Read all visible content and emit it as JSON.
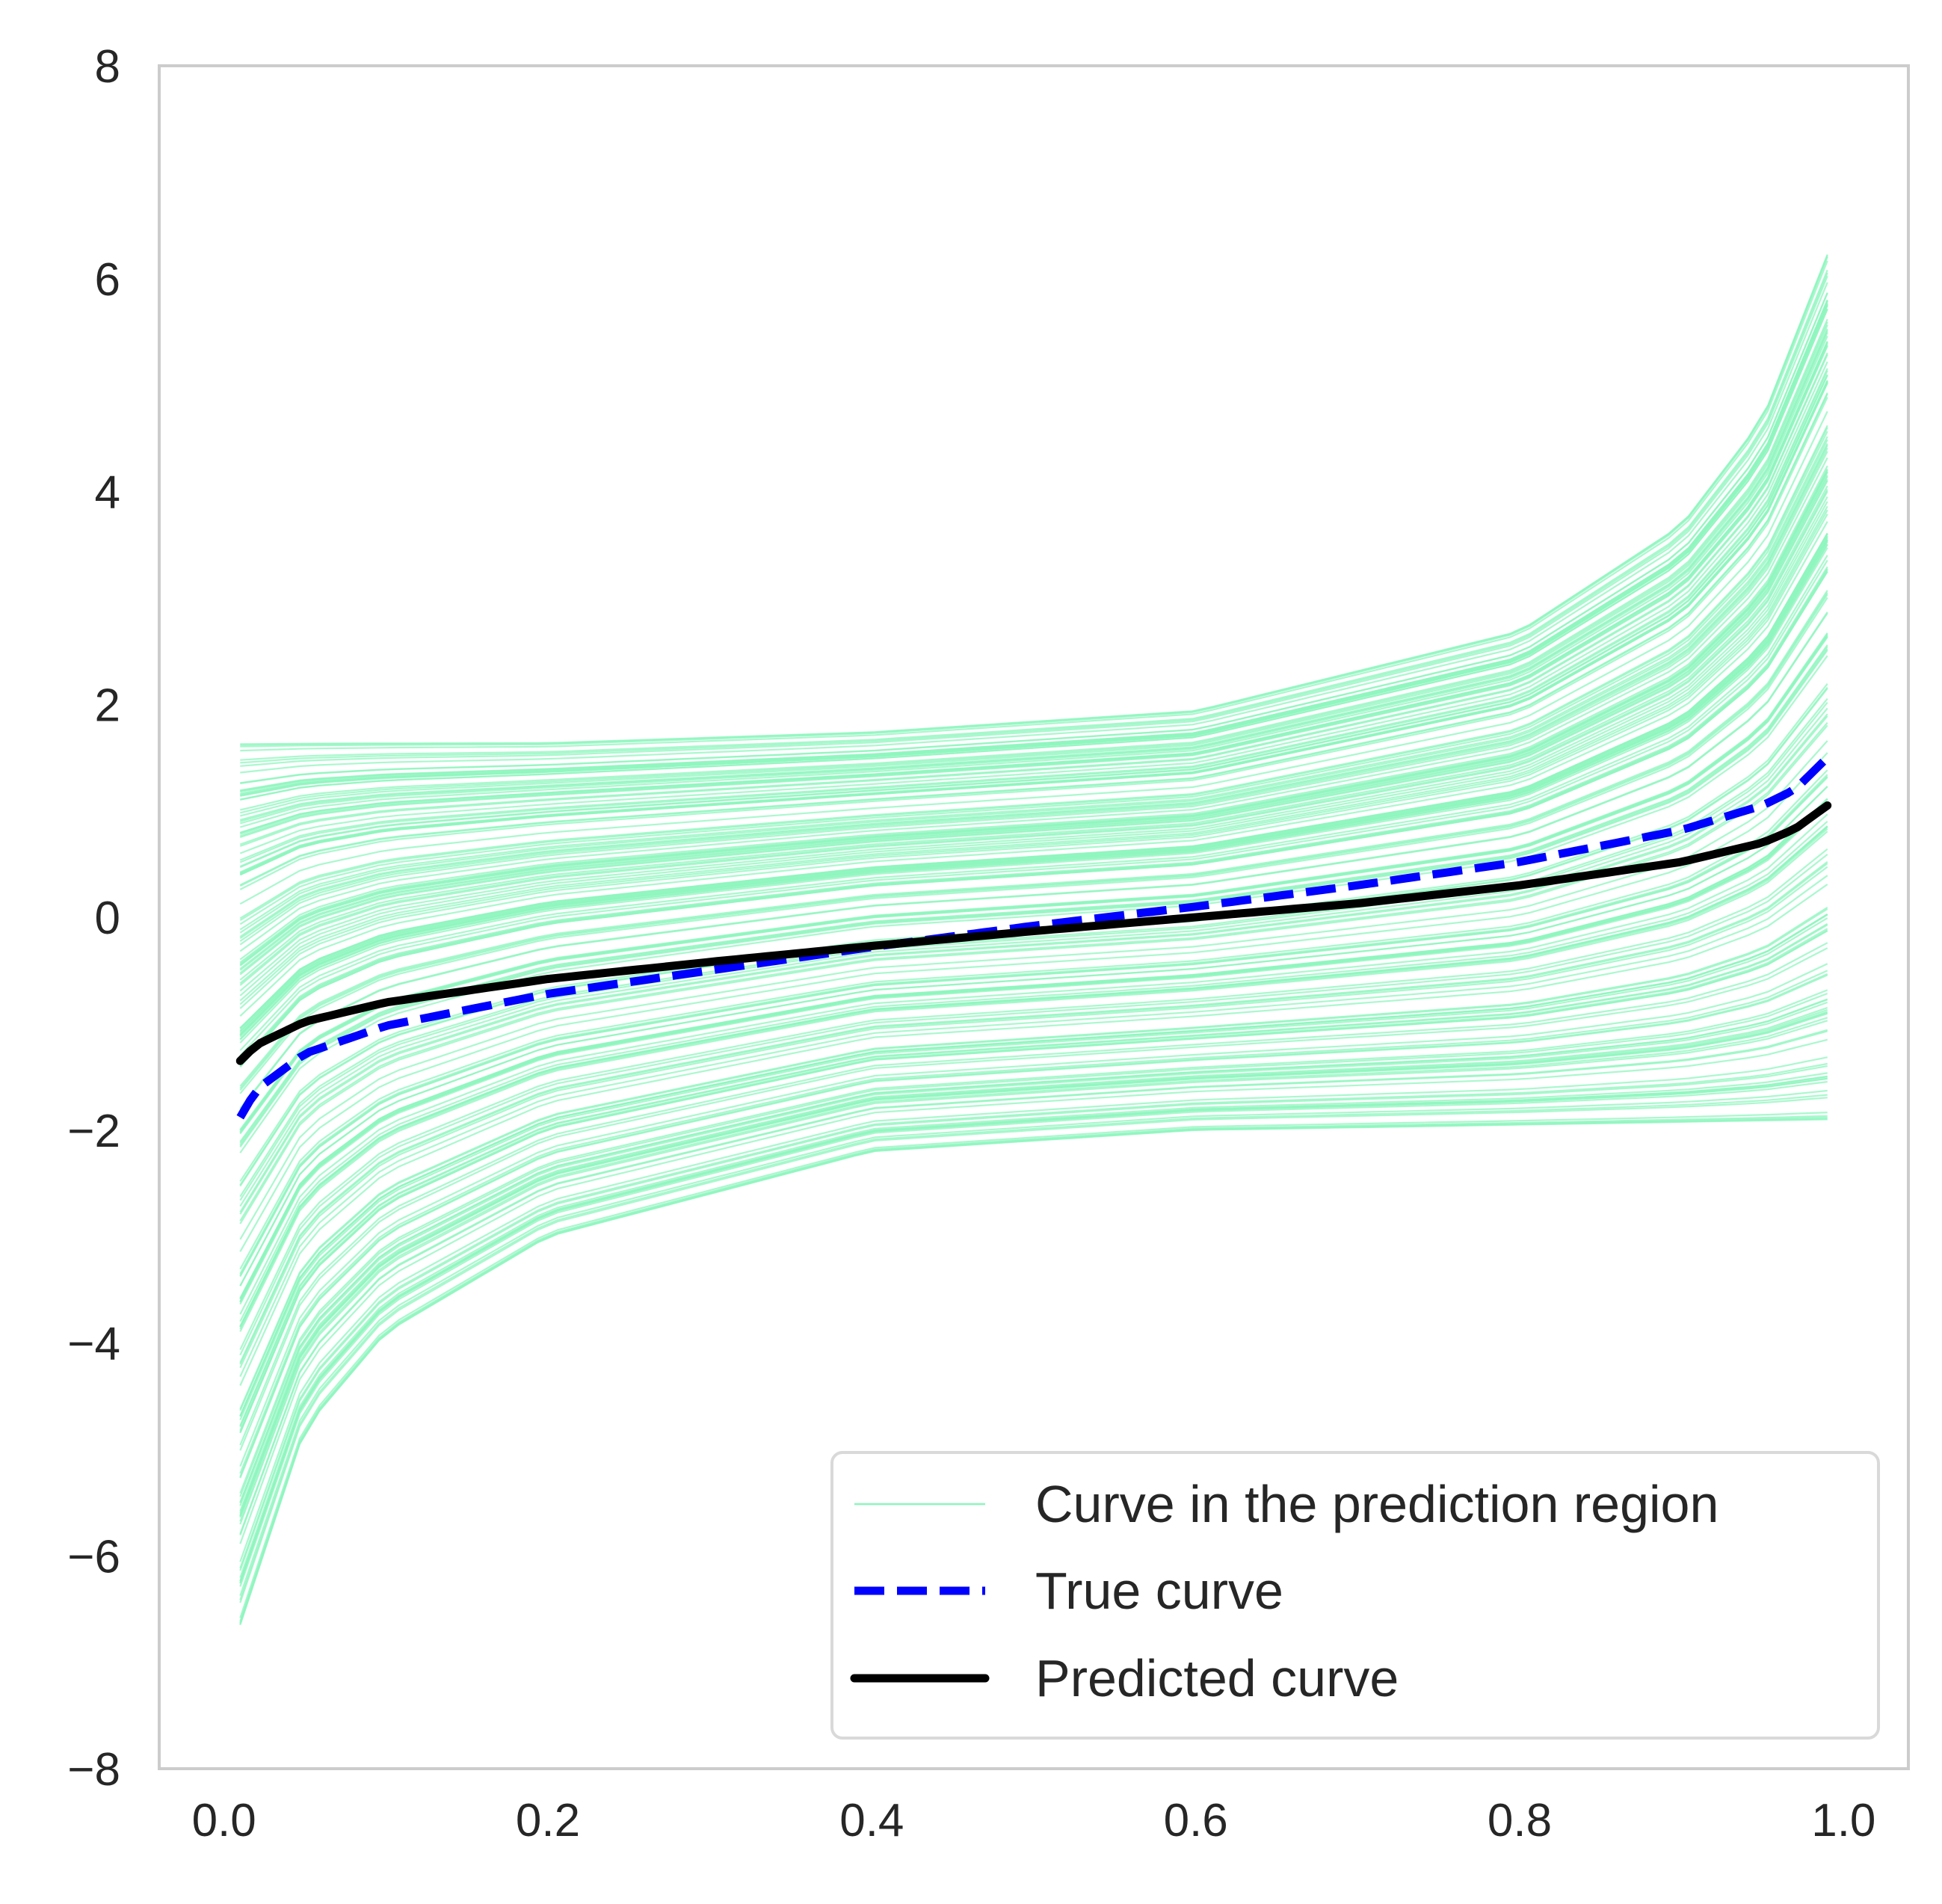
{
  "chart_data": {
    "type": "line",
    "title": "",
    "xlabel": "",
    "ylabel": "",
    "xlim": [
      -0.04,
      1.04
    ],
    "ylim": [
      -8,
      8
    ],
    "grid": false,
    "x_ticks": [
      {
        "value": 0.0,
        "label": "0.0"
      },
      {
        "value": 0.2,
        "label": "0.2"
      },
      {
        "value": 0.4,
        "label": "0.4"
      },
      {
        "value": 0.6,
        "label": "0.6"
      },
      {
        "value": 0.8,
        "label": "0.8"
      },
      {
        "value": 1.0,
        "label": "1.0"
      }
    ],
    "y_ticks": [
      {
        "value": 8,
        "label": "8"
      },
      {
        "value": 6,
        "label": "6"
      },
      {
        "value": 4,
        "label": "4"
      },
      {
        "value": 2,
        "label": "2"
      },
      {
        "value": 0,
        "label": "0"
      },
      {
        "value": -2,
        "label": "−2"
      },
      {
        "value": -4,
        "label": "−4"
      },
      {
        "value": -6,
        "label": "−6"
      },
      {
        "value": -8,
        "label": "−8"
      }
    ],
    "legend": {
      "position": "lower right",
      "entries": [
        {
          "label": "Curve in the prediction region",
          "color": "#8ef5bd",
          "style": "thin"
        },
        {
          "label": "True curve",
          "color": "#0000ff",
          "style": "dashed"
        },
        {
          "label": "Predicted curve",
          "color": "#000000",
          "style": "solid"
        }
      ]
    },
    "series": [
      {
        "name": "True curve",
        "color": "#0000ff",
        "x": [
          0.01,
          0.02,
          0.05,
          0.1,
          0.2,
          0.3,
          0.4,
          0.5,
          0.6,
          0.7,
          0.8,
          0.9,
          0.95,
          0.97,
          0.99
        ],
        "y": [
          -1.88,
          -1.62,
          -1.28,
          -1.02,
          -0.72,
          -0.5,
          -0.28,
          -0.08,
          0.1,
          0.3,
          0.52,
          0.82,
          1.05,
          1.2,
          1.5
        ]
      },
      {
        "name": "Predicted curve",
        "color": "#000000",
        "x": [
          0.01,
          0.02,
          0.05,
          0.1,
          0.2,
          0.3,
          0.4,
          0.5,
          0.6,
          0.7,
          0.8,
          0.9,
          0.95,
          0.97,
          0.99
        ],
        "y": [
          -1.35,
          -1.2,
          -0.98,
          -0.8,
          -0.58,
          -0.42,
          -0.27,
          -0.13,
          0.0,
          0.13,
          0.3,
          0.52,
          0.7,
          0.83,
          1.05
        ]
      },
      {
        "name": "Curve in the prediction region",
        "color": "#8ef5bd",
        "count": 200,
        "x_range": [
          0.01,
          0.99
        ],
        "upper_envelope": {
          "x": [
            0.01,
            0.2,
            0.4,
            0.6,
            0.8,
            0.9,
            0.95,
            0.99
          ],
          "y": [
            1.65,
            1.65,
            1.75,
            1.95,
            2.7,
            3.7,
            4.7,
            6.25
          ]
        },
        "lower_envelope": {
          "x": [
            0.01,
            0.05,
            0.1,
            0.2,
            0.3,
            0.4,
            0.6,
            0.8,
            0.99
          ],
          "y": [
            -6.65,
            -4.8,
            -3.9,
            -3.0,
            -2.6,
            -2.2,
            -2.0,
            -1.95,
            -1.9
          ]
        }
      }
    ]
  }
}
